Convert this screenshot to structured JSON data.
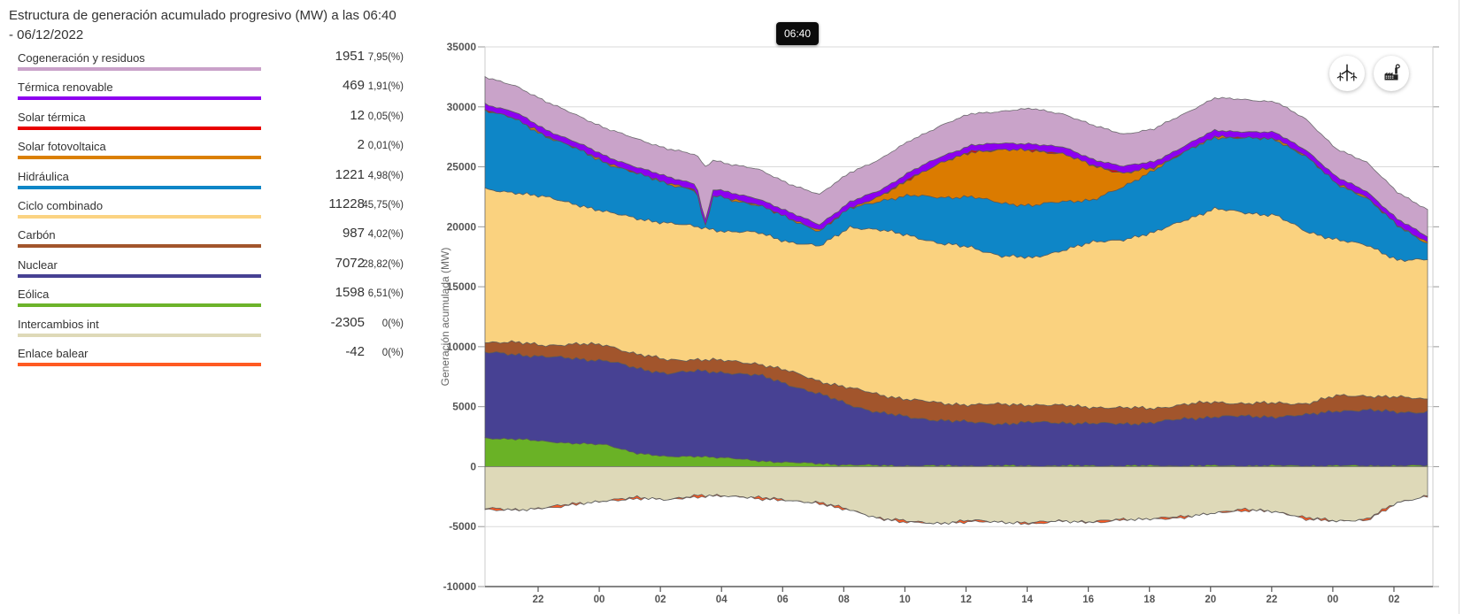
{
  "header": {
    "title": "Estructura de generación acumulado progresivo (MW) a las 06:40 - 06/12/2022"
  },
  "tooltip": {
    "time": "06:40"
  },
  "toolbar": {
    "buttons": [
      {
        "name": "renewable-filter",
        "icon": "wind-turbine-icon"
      },
      {
        "name": "non-renewable-filter",
        "icon": "factory-icon"
      }
    ]
  },
  "legend": {
    "items": [
      {
        "label": "Cogeneración y residuos",
        "value": "1951",
        "percent": "7,95(%)",
        "color": "#c9a1c9"
      },
      {
        "label": "Térmica renovable",
        "value": "469",
        "percent": "1,91(%)",
        "color": "#8d00f0"
      },
      {
        "label": "Solar térmica",
        "value": "12",
        "percent": "0,05(%)",
        "color": "#e80000"
      },
      {
        "label": "Solar fotovoltaica",
        "value": "2",
        "percent": "0,01(%)",
        "color": "#db8000"
      },
      {
        "label": "Hidráulica",
        "value": "1221",
        "percent": "4,98(%)",
        "color": "#0e86c7"
      },
      {
        "label": "Ciclo combinado",
        "value": "11228",
        "percent": "45,75(%)",
        "color": "#fbd382"
      },
      {
        "label": "Carbón",
        "value": "987",
        "percent": "4,02(%)",
        "color": "#a2552c"
      },
      {
        "label": "Nuclear",
        "value": "7072",
        "percent": "28,82(%)",
        "color": "#474193"
      },
      {
        "label": "Eólica",
        "value": "1598",
        "percent": "6,51(%)",
        "color": "#6cb32a"
      },
      {
        "label": "Intercambios int",
        "value": "-2305",
        "percent": "0(%)",
        "color": "#ded9b8"
      },
      {
        "label": "Enlace balear",
        "value": "-42",
        "percent": "0(%)",
        "color": "#ff5a22"
      }
    ]
  },
  "chart_data": {
    "type": "area",
    "stacked": true,
    "title": "Estructura de generación acumulado progresivo (MW)",
    "ylabel": "Generación acumulada (MW)",
    "ylim": [
      -10000,
      35000
    ],
    "ytick_step": 5000,
    "grid": true,
    "x_tick_labels": [
      "22",
      "00",
      "02",
      "04",
      "06",
      "08",
      "10",
      "12",
      "14",
      "16",
      "18",
      "20",
      "22",
      "00",
      "02"
    ],
    "hover_time": "06:40",
    "series": [
      {
        "name": "Eólica",
        "color": "#6ab226",
        "values": [
          2400,
          2300,
          2100,
          1950,
          1800,
          1150,
          800,
          900,
          700,
          500,
          350,
          250,
          150,
          100,
          80,
          80,
          80,
          80,
          80,
          80,
          80,
          80,
          80,
          80,
          80,
          80,
          80,
          80,
          80,
          80,
          80,
          80
        ]
      },
      {
        "name": "Nuclear",
        "color": "#474193",
        "values": [
          7100,
          7080,
          7050,
          7050,
          7050,
          7020,
          7000,
          7050,
          7150,
          7100,
          6500,
          5800,
          5000,
          4400,
          4000,
          3800,
          3600,
          3500,
          3600,
          3600,
          3500,
          3500,
          3600,
          3900,
          4100,
          4100,
          4100,
          4200,
          4600,
          4600,
          4500,
          4450
        ]
      },
      {
        "name": "Carbón",
        "color": "#a2552c",
        "values": [
          900,
          950,
          1000,
          1200,
          1300,
          1200,
          1100,
          1000,
          950,
          1000,
          1100,
          1100,
          1400,
          1500,
          1500,
          1400,
          1500,
          1600,
          1500,
          1400,
          1400,
          1300,
          1200,
          1200,
          1200,
          1100,
          1100,
          1000,
          1200,
          1250,
          1200,
          1100
        ]
      },
      {
        "name": "Ciclo combinado",
        "color": "#fad27f",
        "values": [
          12700,
          12550,
          12300,
          11700,
          11050,
          11350,
          11400,
          11050,
          10800,
          10900,
          10800,
          11200,
          13450,
          13700,
          13700,
          13300,
          13100,
          12400,
          12200,
          13000,
          13700,
          14100,
          14600,
          15400,
          16100,
          15900,
          15700,
          14300,
          13100,
          12500,
          11500,
          11600
        ]
      },
      {
        "name": "Hidráulica",
        "color": "#0e86c7",
        "values": [
          6600,
          6100,
          5100,
          4600,
          4100,
          3700,
          3300,
          3000,
          2700,
          2300,
          1900,
          1300,
          1500,
          2500,
          3300,
          3900,
          4200,
          4400,
          4400,
          4000,
          3600,
          4300,
          5300,
          5600,
          6000,
          6200,
          6300,
          6300,
          4600,
          4000,
          2800,
          1400
        ]
      },
      {
        "name": "Solar fotovoltaica",
        "color": "#db7b00",
        "values": [
          0,
          0,
          0,
          0,
          0,
          0,
          0,
          0,
          0,
          0,
          0,
          0,
          0,
          300,
          1500,
          2800,
          3800,
          4400,
          4600,
          4000,
          2800,
          1200,
          100,
          0,
          0,
          0,
          0,
          0,
          0,
          0,
          0,
          0
        ]
      },
      {
        "name": "Solar térmica",
        "color": "#e80000",
        "values": [
          10,
          10,
          10,
          10,
          10,
          10,
          10,
          10,
          10,
          10,
          10,
          10,
          10,
          10,
          10,
          10,
          10,
          10,
          10,
          10,
          10,
          10,
          10,
          10,
          10,
          10,
          10,
          10,
          10,
          10,
          10,
          10
        ]
      },
      {
        "name": "Térmica renovable",
        "color": "#8d00f0",
        "values": [
          550,
          550,
          550,
          550,
          550,
          550,
          550,
          550,
          550,
          550,
          550,
          550,
          550,
          550,
          550,
          550,
          550,
          550,
          550,
          550,
          550,
          550,
          550,
          550,
          550,
          550,
          550,
          550,
          550,
          550,
          550,
          550
        ]
      },
      {
        "name": "Cogeneración y residuos",
        "color": "#c9a3c9",
        "values": [
          2200,
          2250,
          2300,
          2300,
          2300,
          2350,
          2350,
          2400,
          2400,
          2400,
          2400,
          2450,
          2500,
          2550,
          2600,
          2600,
          2600,
          2700,
          2900,
          2800,
          2800,
          2700,
          2700,
          2700,
          2700,
          2650,
          2600,
          2500,
          2400,
          2350,
          2300,
          2200
        ]
      }
    ],
    "negative_series": [
      {
        "name": "Intercambios int",
        "color": "#ded9b8",
        "values": [
          -3500,
          -3600,
          -3400,
          -3100,
          -2800,
          -2600,
          -2700,
          -2450,
          -2400,
          -2600,
          -2800,
          -3000,
          -3600,
          -4300,
          -4600,
          -4700,
          -4500,
          -4600,
          -4700,
          -4500,
          -4600,
          -4400,
          -4300,
          -4200,
          -3800,
          -3600,
          -3700,
          -4300,
          -4500,
          -4400,
          -3000,
          -2400
        ]
      },
      {
        "name": "Enlace balear",
        "color": "#ff5a22",
        "values": [
          -40,
          -40,
          -40,
          -40,
          -40,
          -40,
          -40,
          -40,
          -40,
          -40,
          -40,
          -40,
          -40,
          -40,
          -40,
          -40,
          -40,
          -40,
          -40,
          -40,
          -40,
          -40,
          -40,
          -40,
          -40,
          -40,
          -40,
          -40,
          -40,
          -40,
          -40,
          -40
        ]
      }
    ]
  }
}
